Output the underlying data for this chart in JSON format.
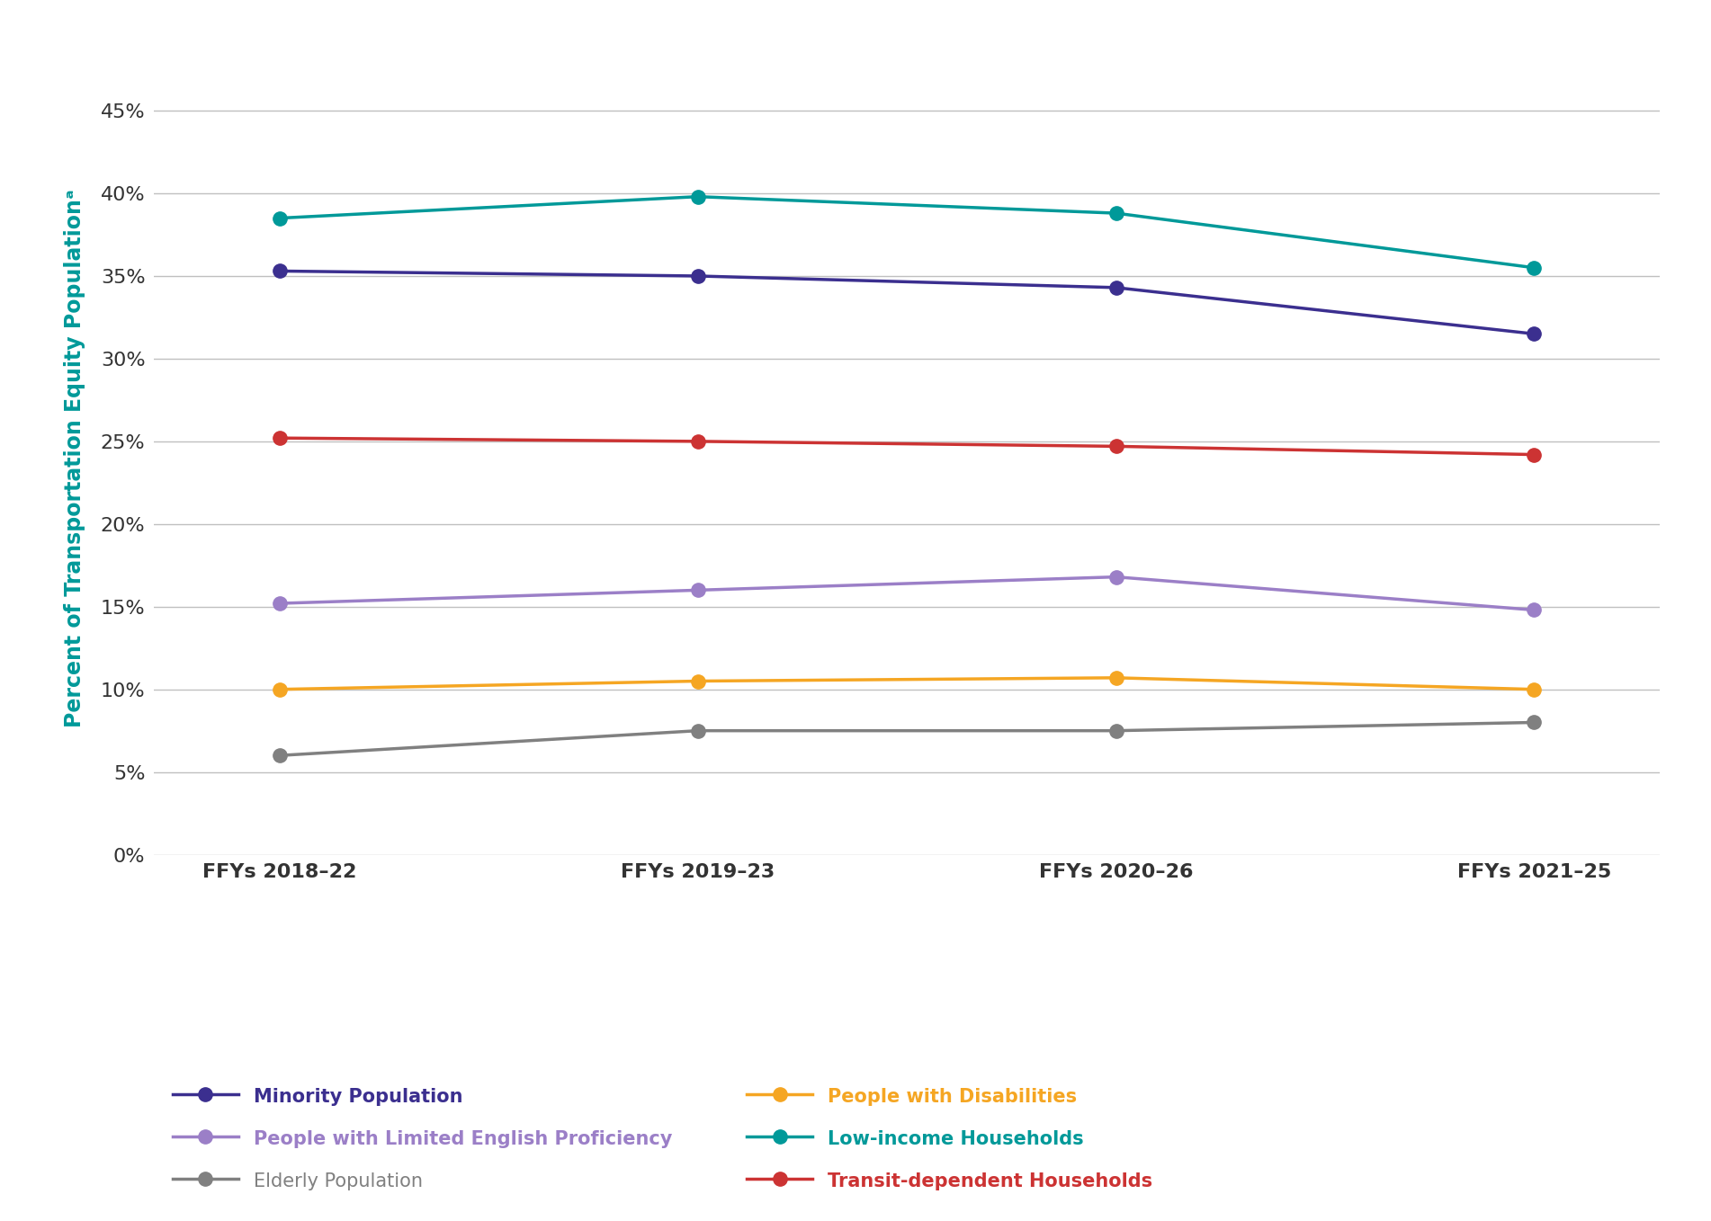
{
  "x_labels": [
    "FFYs 2018–22",
    "FFYs 2019–23",
    "FFYs 2020–26",
    "FFYs 2021–25"
  ],
  "series": {
    "Minority Population": {
      "values": [
        35.3,
        35.0,
        34.3,
        31.5
      ],
      "color": "#3b2f8f",
      "linewidth": 2.5,
      "markersize": 11,
      "bold": true
    },
    "Elderly Population": {
      "values": [
        6.0,
        7.5,
        7.5,
        8.0
      ],
      "color": "#808080",
      "linewidth": 2.5,
      "markersize": 11,
      "bold": false
    },
    "Low-income Households": {
      "values": [
        38.5,
        39.8,
        38.8,
        35.5
      ],
      "color": "#009999",
      "linewidth": 2.5,
      "markersize": 11,
      "bold": true
    },
    "People with Limited English Proficiency": {
      "values": [
        15.2,
        16.0,
        16.8,
        14.8
      ],
      "color": "#9b7fc7",
      "linewidth": 2.5,
      "markersize": 11,
      "bold": true
    },
    "People with Disabilities": {
      "values": [
        10.0,
        10.5,
        10.7,
        10.0
      ],
      "color": "#f5a623",
      "linewidth": 2.5,
      "markersize": 11,
      "bold": true
    },
    "Transit-dependent Households": {
      "values": [
        25.2,
        25.0,
        24.7,
        24.2
      ],
      "color": "#cc3333",
      "linewidth": 2.5,
      "markersize": 11,
      "bold": true
    }
  },
  "ylabel": "Percent of Transportation Equity Populationᵃ",
  "ylabel_color": "#009999",
  "ylabel_fontsize": 17,
  "ytick_fontsize": 16,
  "xtick_fontsize": 16,
  "yticks": [
    0,
    5,
    10,
    15,
    20,
    25,
    30,
    35,
    40,
    45
  ],
  "ylim": [
    0,
    48
  ],
  "legend_fontsize": 15,
  "grid_color": "#c0c0c0",
  "background_color": "#ffffff",
  "legend_order": [
    "Minority Population",
    "People with Limited English Proficiency",
    "Elderly Population",
    "People with Disabilities",
    "Low-income Households",
    "Transit-dependent Households"
  ]
}
